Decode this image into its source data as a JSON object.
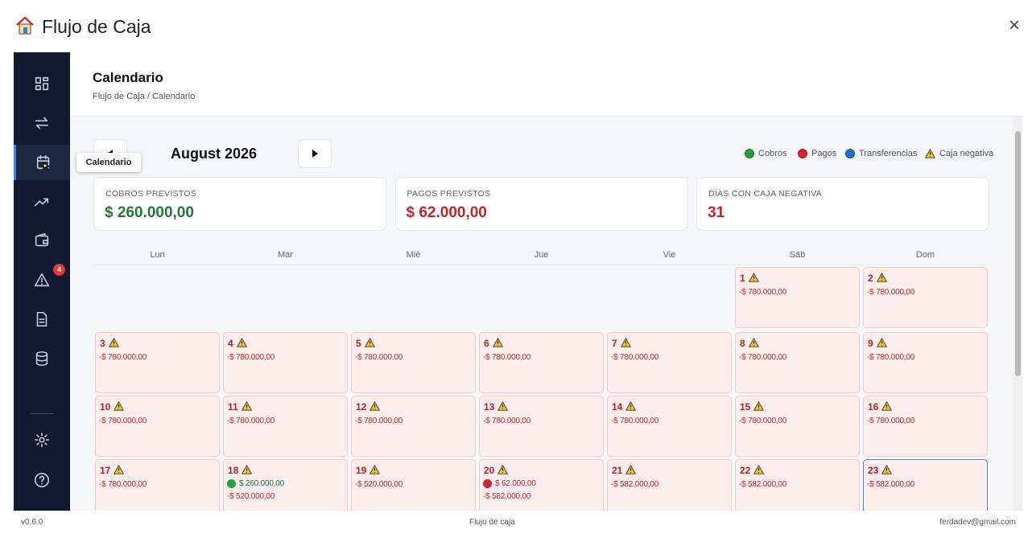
{
  "window": {
    "title": "Flujo de Caja",
    "close": "×"
  },
  "sidebar": {
    "tooltip": "Calendario",
    "alerts_badge": 4
  },
  "header": {
    "title": "Calendario",
    "breadcrumb": "Flujo de Caja / Calendario"
  },
  "calendar": {
    "month": "August 2026",
    "legend": [
      {
        "label": "Cobros",
        "color": "#22a33a"
      },
      {
        "label": "Pagos",
        "color": "#d9202e"
      },
      {
        "label": "Transferencias",
        "color": "#1f6fd1"
      },
      {
        "label": "Caja negativa"
      }
    ],
    "stats": [
      {
        "label": "COBROS PREVISTOS",
        "value": "$ 260.000,00",
        "color": "#1f7a35"
      },
      {
        "label": "PAGOS PREVISTOS",
        "value": "$ 62.000,00",
        "color": "#c0262f"
      },
      {
        "label": "DÍAS CON CAJA NEGATIVA",
        "value": "31",
        "color": "#c0262f"
      }
    ],
    "weekdays": [
      "Lun",
      "Mar",
      "Mié",
      "Jue",
      "Vie",
      "Sáb",
      "Dom"
    ],
    "days": [
      {
        "day": 1,
        "balance": "-$ 780.000,00"
      },
      {
        "day": 2,
        "balance": "-$ 780.000,00"
      },
      {
        "day": 3,
        "balance": "-$ 780.000,00"
      },
      {
        "day": 4,
        "balance": "-$ 780.000,00"
      },
      {
        "day": 5,
        "balance": "-$ 780.000,00"
      },
      {
        "day": 6,
        "balance": "-$ 780.000,00"
      },
      {
        "day": 7,
        "balance": "-$ 780.000,00"
      },
      {
        "day": 8,
        "balance": "-$ 780.000,00"
      },
      {
        "day": 9,
        "balance": "-$ 780.000,00"
      },
      {
        "day": 10,
        "balance": "-$ 780.000,00"
      },
      {
        "day": 11,
        "balance": "-$ 780.000,00"
      },
      {
        "day": 12,
        "balance": "-$ 780.000,00"
      },
      {
        "day": 13,
        "balance": "-$ 780.000,00"
      },
      {
        "day": 14,
        "balance": "-$ 780.000,00"
      },
      {
        "day": 15,
        "balance": "-$ 780.000,00"
      },
      {
        "day": 16,
        "balance": "-$ 780.000,00"
      },
      {
        "day": 17,
        "balance": "-$ 780.000,00"
      },
      {
        "day": 18,
        "cobro": "$ 260.000,00",
        "balance": "-$ 520.000,00"
      },
      {
        "day": 19,
        "balance": "-$ 520.000,00"
      },
      {
        "day": 20,
        "pago": "$ 62.000,00",
        "balance": "-$ 582.000,00"
      },
      {
        "day": 21,
        "balance": "-$ 582.000,00"
      },
      {
        "day": 22,
        "balance": "-$ 582.000,00"
      },
      {
        "day": 23,
        "balance": "-$ 582.000,00",
        "today": true
      }
    ]
  },
  "footer": {
    "version": "v0.6.0",
    "center": "Flujo de caja",
    "email": "ferdadev@gmail.com"
  }
}
